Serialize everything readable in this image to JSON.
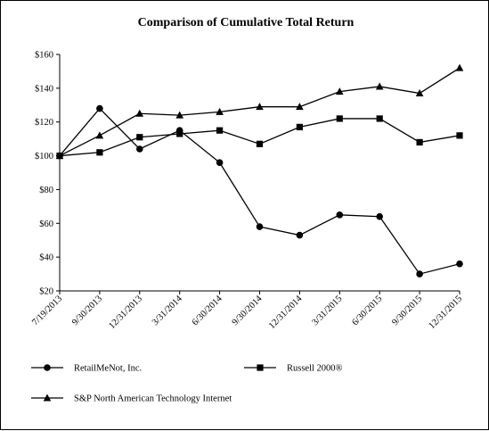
{
  "chart_data": {
    "type": "line",
    "title": "Comparison of Cumulative Total Return",
    "categories": [
      "7/19/2013",
      "9/30/2013",
      "12/31/2013",
      "3/31/2014",
      "6/30/2014",
      "9/30/2014",
      "12/31/2014",
      "3/31/2015",
      "6/30/2015",
      "9/30/2015",
      "12/31/2015"
    ],
    "y_tick_labels": [
      "$20",
      "$40",
      "$60",
      "$80",
      "$100",
      "$120",
      "$140",
      "$160"
    ],
    "ylim": [
      20,
      160
    ],
    "grid": false,
    "legend_placement": "bottom",
    "series": [
      {
        "name": "RetailMeNot, Inc.",
        "marker": "circle",
        "values": [
          100,
          128,
          104,
          115,
          96,
          58,
          53,
          65,
          64,
          30,
          36
        ]
      },
      {
        "name": "Russell 2000®",
        "marker": "square",
        "values": [
          100,
          102,
          111,
          113,
          115,
          107,
          117,
          122,
          122,
          108,
          112
        ]
      },
      {
        "name": "S&P North American Technology Internet",
        "marker": "triangle",
        "values": [
          100,
          112,
          125,
          124,
          126,
          129,
          129,
          138,
          141,
          137,
          152
        ]
      }
    ]
  }
}
